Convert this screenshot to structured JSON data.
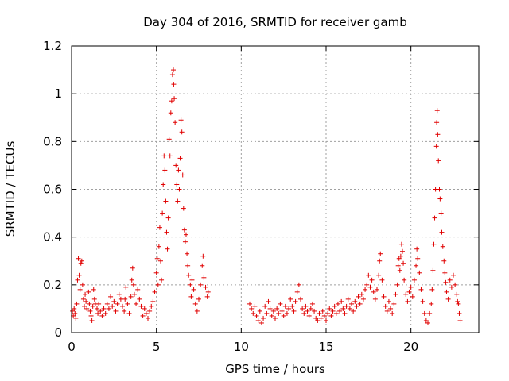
{
  "chart_data": {
    "type": "scatter",
    "title": "Day 304 of 2016, SRMTID for receiver gamb",
    "xlabel": "GPS time / hours",
    "ylabel": "SRMTID / TECUs",
    "xlim": [
      0,
      24
    ],
    "ylim": [
      0,
      1.2
    ],
    "xticks": [
      0,
      5,
      10,
      15,
      20
    ],
    "xtick_labels": [
      "0",
      "5",
      "10",
      "15",
      "20"
    ],
    "yticks": [
      0,
      0.2,
      0.4,
      0.6,
      0.8,
      1,
      1.2
    ],
    "ytick_labels": [
      "0",
      "0.2",
      "0.4",
      "0.6",
      "0.8",
      "1",
      "1.2"
    ],
    "grid": true,
    "marker": "+",
    "color": "#e00000",
    "series": [
      {
        "name": "SRMTID",
        "points": [
          [
            0.05,
            0.09
          ],
          [
            0.1,
            0.07
          ],
          [
            0.15,
            0.1
          ],
          [
            0.2,
            0.08
          ],
          [
            0.25,
            0.06
          ],
          [
            0.3,
            0.12
          ],
          [
            0.35,
            0.22
          ],
          [
            0.4,
            0.31
          ],
          [
            0.45,
            0.24
          ],
          [
            0.5,
            0.18
          ],
          [
            0.55,
            0.29
          ],
          [
            0.6,
            0.3
          ],
          [
            0.65,
            0.2
          ],
          [
            0.7,
            0.14
          ],
          [
            0.75,
            0.11
          ],
          [
            0.8,
            0.16
          ],
          [
            0.85,
            0.13
          ],
          [
            0.9,
            0.1
          ],
          [
            1.0,
            0.17
          ],
          [
            1.05,
            0.12
          ],
          [
            1.1,
            0.09
          ],
          [
            1.15,
            0.07
          ],
          [
            1.2,
            0.05
          ],
          [
            1.25,
            0.11
          ],
          [
            1.3,
            0.18
          ],
          [
            1.35,
            0.14
          ],
          [
            1.4,
            0.12
          ],
          [
            1.5,
            0.1
          ],
          [
            1.55,
            0.08
          ],
          [
            1.6,
            0.12
          ],
          [
            1.7,
            0.09
          ],
          [
            1.8,
            0.07
          ],
          [
            1.9,
            0.1
          ],
          [
            2.0,
            0.08
          ],
          [
            2.1,
            0.12
          ],
          [
            2.2,
            0.1
          ],
          [
            2.3,
            0.15
          ],
          [
            2.4,
            0.11
          ],
          [
            2.5,
            0.13
          ],
          [
            2.6,
            0.09
          ],
          [
            2.7,
            0.12
          ],
          [
            2.8,
            0.16
          ],
          [
            2.9,
            0.14
          ],
          [
            3.0,
            0.11
          ],
          [
            3.1,
            0.09
          ],
          [
            3.15,
            0.14
          ],
          [
            3.2,
            0.19
          ],
          [
            3.3,
            0.12
          ],
          [
            3.4,
            0.08
          ],
          [
            3.5,
            0.15
          ],
          [
            3.55,
            0.22
          ],
          [
            3.6,
            0.27
          ],
          [
            3.65,
            0.2
          ],
          [
            3.7,
            0.16
          ],
          [
            3.8,
            0.12
          ],
          [
            3.9,
            0.18
          ],
          [
            4.0,
            0.14
          ],
          [
            4.1,
            0.11
          ],
          [
            4.2,
            0.07
          ],
          [
            4.3,
            0.1
          ],
          [
            4.4,
            0.08
          ],
          [
            4.5,
            0.06
          ],
          [
            4.6,
            0.09
          ],
          [
            4.7,
            0.11
          ],
          [
            4.8,
            0.13
          ],
          [
            4.9,
            0.17
          ],
          [
            5.0,
            0.25
          ],
          [
            5.05,
            0.31
          ],
          [
            5.1,
            0.2
          ],
          [
            5.15,
            0.36
          ],
          [
            5.2,
            0.44
          ],
          [
            5.25,
            0.3
          ],
          [
            5.3,
            0.22
          ],
          [
            5.35,
            0.5
          ],
          [
            5.4,
            0.62
          ],
          [
            5.45,
            0.74
          ],
          [
            5.5,
            0.68
          ],
          [
            5.55,
            0.55
          ],
          [
            5.6,
            0.42
          ],
          [
            5.65,
            0.35
          ],
          [
            5.7,
            0.48
          ],
          [
            5.75,
            0.81
          ],
          [
            5.8,
            0.74
          ],
          [
            5.85,
            0.92
          ],
          [
            5.9,
            0.97
          ],
          [
            5.95,
            1.08
          ],
          [
            6.0,
            1.1
          ],
          [
            6.02,
            1.04
          ],
          [
            6.05,
            0.98
          ],
          [
            6.1,
            0.88
          ],
          [
            6.15,
            0.7
          ],
          [
            6.2,
            0.62
          ],
          [
            6.25,
            0.55
          ],
          [
            6.3,
            0.68
          ],
          [
            6.35,
            0.6
          ],
          [
            6.4,
            0.73
          ],
          [
            6.45,
            0.89
          ],
          [
            6.5,
            0.84
          ],
          [
            6.55,
            0.66
          ],
          [
            6.6,
            0.52
          ],
          [
            6.65,
            0.43
          ],
          [
            6.7,
            0.38
          ],
          [
            6.75,
            0.41
          ],
          [
            6.8,
            0.33
          ],
          [
            6.85,
            0.28
          ],
          [
            6.9,
            0.24
          ],
          [
            7.0,
            0.2
          ],
          [
            7.05,
            0.15
          ],
          [
            7.1,
            0.22
          ],
          [
            7.2,
            0.18
          ],
          [
            7.3,
            0.12
          ],
          [
            7.4,
            0.09
          ],
          [
            7.5,
            0.14
          ],
          [
            7.6,
            0.2
          ],
          [
            7.7,
            0.28
          ],
          [
            7.75,
            0.32
          ],
          [
            7.8,
            0.23
          ],
          [
            7.9,
            0.19
          ],
          [
            8.0,
            0.15
          ],
          [
            8.05,
            0.17
          ],
          [
            10.5,
            0.12
          ],
          [
            10.6,
            0.1
          ],
          [
            10.7,
            0.08
          ],
          [
            10.8,
            0.11
          ],
          [
            10.9,
            0.07
          ],
          [
            11.0,
            0.05
          ],
          [
            11.1,
            0.09
          ],
          [
            11.2,
            0.04
          ],
          [
            11.3,
            0.06
          ],
          [
            11.4,
            0.11
          ],
          [
            11.5,
            0.08
          ],
          [
            11.6,
            0.13
          ],
          [
            11.7,
            0.1
          ],
          [
            11.8,
            0.07
          ],
          [
            11.9,
            0.09
          ],
          [
            12.0,
            0.06
          ],
          [
            12.1,
            0.1
          ],
          [
            12.2,
            0.08
          ],
          [
            12.3,
            0.12
          ],
          [
            12.4,
            0.09
          ],
          [
            12.5,
            0.07
          ],
          [
            12.6,
            0.11
          ],
          [
            12.7,
            0.08
          ],
          [
            12.8,
            0.1
          ],
          [
            12.9,
            0.14
          ],
          [
            13.0,
            0.11
          ],
          [
            13.1,
            0.09
          ],
          [
            13.2,
            0.13
          ],
          [
            13.3,
            0.17
          ],
          [
            13.4,
            0.2
          ],
          [
            13.5,
            0.14
          ],
          [
            13.6,
            0.1
          ],
          [
            13.7,
            0.08
          ],
          [
            13.8,
            0.11
          ],
          [
            13.9,
            0.09
          ],
          [
            14.0,
            0.07
          ],
          [
            14.1,
            0.1
          ],
          [
            14.2,
            0.12
          ],
          [
            14.3,
            0.09
          ],
          [
            14.4,
            0.06
          ],
          [
            14.5,
            0.05
          ],
          [
            14.6,
            0.08
          ],
          [
            14.7,
            0.06
          ],
          [
            14.8,
            0.09
          ],
          [
            14.9,
            0.07
          ],
          [
            15.0,
            0.05
          ],
          [
            15.1,
            0.08
          ],
          [
            15.2,
            0.1
          ],
          [
            15.3,
            0.07
          ],
          [
            15.4,
            0.09
          ],
          [
            15.5,
            0.11
          ],
          [
            15.6,
            0.08
          ],
          [
            15.7,
            0.12
          ],
          [
            15.8,
            0.09
          ],
          [
            15.9,
            0.13
          ],
          [
            16.0,
            0.1
          ],
          [
            16.1,
            0.08
          ],
          [
            16.2,
            0.11
          ],
          [
            16.3,
            0.14
          ],
          [
            16.4,
            0.1
          ],
          [
            16.5,
            0.12
          ],
          [
            16.6,
            0.09
          ],
          [
            16.7,
            0.13
          ],
          [
            16.8,
            0.11
          ],
          [
            16.9,
            0.15
          ],
          [
            17.0,
            0.12
          ],
          [
            17.1,
            0.16
          ],
          [
            17.2,
            0.14
          ],
          [
            17.3,
            0.18
          ],
          [
            17.4,
            0.2
          ],
          [
            17.5,
            0.24
          ],
          [
            17.6,
            0.19
          ],
          [
            17.7,
            0.22
          ],
          [
            17.8,
            0.17
          ],
          [
            17.9,
            0.14
          ],
          [
            18.0,
            0.18
          ],
          [
            18.1,
            0.24
          ],
          [
            18.15,
            0.3
          ],
          [
            18.2,
            0.33
          ],
          [
            18.3,
            0.22
          ],
          [
            18.4,
            0.15
          ],
          [
            18.5,
            0.11
          ],
          [
            18.6,
            0.09
          ],
          [
            18.7,
            0.13
          ],
          [
            18.8,
            0.1
          ],
          [
            18.9,
            0.08
          ],
          [
            19.0,
            0.12
          ],
          [
            19.1,
            0.16
          ],
          [
            19.2,
            0.2
          ],
          [
            19.25,
            0.28
          ],
          [
            19.3,
            0.31
          ],
          [
            19.35,
            0.26
          ],
          [
            19.4,
            0.32
          ],
          [
            19.45,
            0.37
          ],
          [
            19.5,
            0.34
          ],
          [
            19.55,
            0.29
          ],
          [
            19.6,
            0.22
          ],
          [
            19.7,
            0.16
          ],
          [
            19.8,
            0.13
          ],
          [
            19.9,
            0.17
          ],
          [
            20.0,
            0.19
          ],
          [
            20.1,
            0.15
          ],
          [
            20.2,
            0.22
          ],
          [
            20.3,
            0.28
          ],
          [
            20.35,
            0.35
          ],
          [
            20.4,
            0.31
          ],
          [
            20.5,
            0.25
          ],
          [
            20.6,
            0.18
          ],
          [
            20.7,
            0.13
          ],
          [
            20.8,
            0.08
          ],
          [
            20.9,
            0.05
          ],
          [
            21.0,
            0.04
          ],
          [
            21.1,
            0.08
          ],
          [
            21.2,
            0.12
          ],
          [
            21.25,
            0.18
          ],
          [
            21.3,
            0.26
          ],
          [
            21.35,
            0.37
          ],
          [
            21.4,
            0.48
          ],
          [
            21.45,
            0.6
          ],
          [
            21.5,
            0.78
          ],
          [
            21.52,
            0.88
          ],
          [
            21.55,
            0.93
          ],
          [
            21.58,
            0.83
          ],
          [
            21.62,
            0.72
          ],
          [
            21.68,
            0.6
          ],
          [
            21.72,
            0.56
          ],
          [
            21.78,
            0.5
          ],
          [
            21.82,
            0.42
          ],
          [
            21.88,
            0.36
          ],
          [
            21.95,
            0.3
          ],
          [
            22.0,
            0.25
          ],
          [
            22.05,
            0.21
          ],
          [
            22.1,
            0.17
          ],
          [
            22.2,
            0.14
          ],
          [
            22.3,
            0.22
          ],
          [
            22.4,
            0.19
          ],
          [
            22.5,
            0.24
          ],
          [
            22.6,
            0.2
          ],
          [
            22.7,
            0.16
          ],
          [
            22.75,
            0.13
          ],
          [
            22.8,
            0.12
          ],
          [
            22.85,
            0.08
          ],
          [
            22.9,
            0.05
          ]
        ]
      }
    ]
  }
}
